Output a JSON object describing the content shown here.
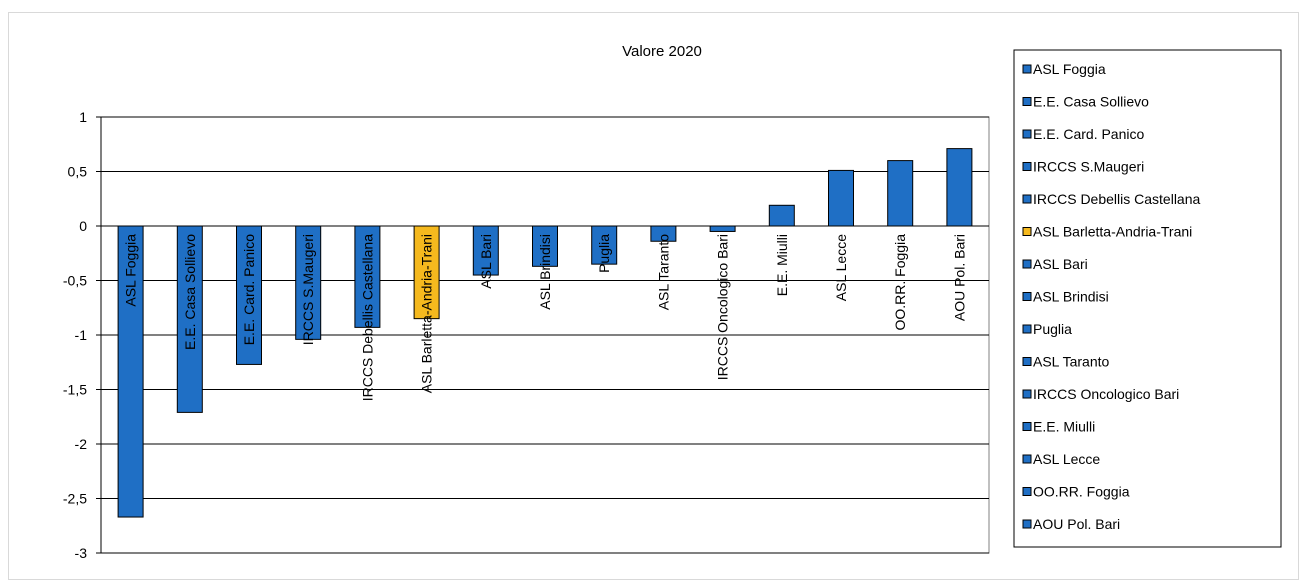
{
  "chart_data": {
    "type": "bar",
    "title": "Valore 2020",
    "xlabel": "",
    "ylabel": "",
    "ylim": [
      -3,
      1
    ],
    "yticks": [
      1,
      0.5,
      0,
      -0.5,
      -1,
      -1.5,
      -2,
      -2.5,
      -3
    ],
    "ytick_labels": [
      "1",
      "0,5",
      "0",
      "-0,5",
      "-1",
      "-1,5",
      "-2",
      "-2,5",
      "-3"
    ],
    "grid": true,
    "legend_position": "right",
    "colors": {
      "default": "#1f6fc5",
      "highlight": "#f5b91e",
      "bar_stroke": "#000000",
      "grid": "#000000"
    },
    "categories": [
      "ASL Foggia",
      "E.E. Casa Sollievo",
      "E.E. Card. Panico",
      "IRCCS S.Maugeri",
      "IRCCS Debellis Castellana",
      "ASL Barletta-Andria-Trani",
      "ASL Bari",
      "ASL Brindisi",
      "Puglia",
      "ASL Taranto",
      "IRCCS Oncologico Bari",
      "E.E. Miulli",
      "ASL Lecce",
      "OO.RR. Foggia",
      "AOU Pol. Bari"
    ],
    "values": [
      -2.67,
      -1.71,
      -1.27,
      -1.04,
      -0.93,
      -0.85,
      -0.45,
      -0.37,
      -0.35,
      -0.14,
      -0.05,
      0.19,
      0.51,
      0.6,
      0.71
    ],
    "highlight_index": 5
  }
}
